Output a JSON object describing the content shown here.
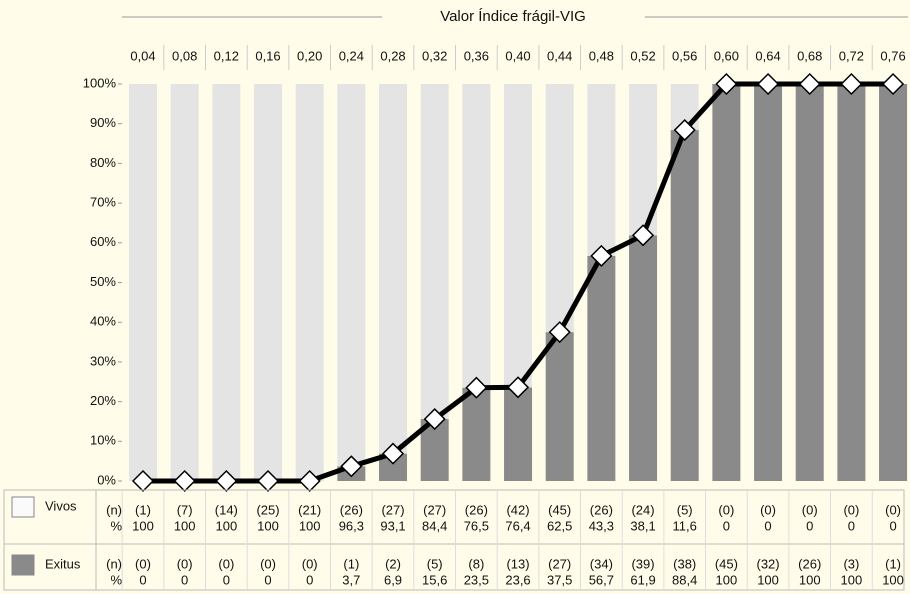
{
  "chart_data": {
    "type": "bar",
    "stacked": true,
    "title": "Valor Índice frágil-VIG",
    "categories": [
      "0,04",
      "0,08",
      "0,12",
      "0,16",
      "0,20",
      "0,24",
      "0,28",
      "0,32",
      "0,36",
      "0,40",
      "0,44",
      "0,48",
      "0,52",
      "0,56",
      "0,60",
      "0,64",
      "0,68",
      "0,72",
      "0,76"
    ],
    "ylim": [
      0,
      100
    ],
    "yticks": [
      {
        "value": 0,
        "label": "0%"
      },
      {
        "value": 10,
        "label": "10%"
      },
      {
        "value": 20,
        "label": "20%"
      },
      {
        "value": 30,
        "label": "30%"
      },
      {
        "value": 40,
        "label": "40%"
      },
      {
        "value": 50,
        "label": "50%"
      },
      {
        "value": 60,
        "label": "60%"
      },
      {
        "value": 70,
        "label": "70%"
      },
      {
        "value": 80,
        "label": "80%"
      },
      {
        "value": 90,
        "label": "90%"
      },
      {
        "value": 100,
        "label": "100%"
      }
    ],
    "row_labels": [
      "(n)",
      "%"
    ],
    "series": [
      {
        "name": "Vivos",
        "color": "#e4e4e4",
        "counts": [
          "(1)",
          "(7)",
          "(14)",
          "(25)",
          "(21)",
          "(26)",
          "(27)",
          "(27)",
          "(26)",
          "(42)",
          "(45)",
          "(26)",
          "(24)",
          "(5)",
          "(0)",
          "(0)",
          "(0)",
          "(0)",
          "(0)"
        ],
        "values": [
          100,
          100,
          100,
          100,
          100,
          96.3,
          93.1,
          84.4,
          76.5,
          76.4,
          62.5,
          43.3,
          38.1,
          11.6,
          0,
          0,
          0,
          0,
          0
        ],
        "value_labels": [
          "100",
          "100",
          "100",
          "100",
          "100",
          "96,3",
          "93,1",
          "84,4",
          "76,5",
          "76,4",
          "62,5",
          "43,3",
          "38,1",
          "11,6",
          "0",
          "0",
          "0",
          "0",
          "0"
        ]
      },
      {
        "name": "Exitus",
        "color": "#8a8a8a",
        "counts": [
          "(0)",
          "(0)",
          "(0)",
          "(0)",
          "(0)",
          "(1)",
          "(2)",
          "(5)",
          "(8)",
          "(13)",
          "(27)",
          "(34)",
          "(39)",
          "(38)",
          "(45)",
          "(32)",
          "(26)",
          "(3)",
          "(1)"
        ],
        "values": [
          0,
          0,
          0,
          0,
          0,
          3.7,
          6.9,
          15.6,
          23.5,
          23.6,
          37.5,
          56.7,
          61.9,
          88.4,
          100,
          100,
          100,
          100,
          100
        ],
        "value_labels": [
          "0",
          "0",
          "0",
          "0",
          "0",
          "3,7",
          "6,9",
          "15,6",
          "23,5",
          "23,6",
          "37,5",
          "56,7",
          "61,9",
          "88,4",
          "100",
          "100",
          "100",
          "100",
          "100"
        ]
      }
    ]
  }
}
